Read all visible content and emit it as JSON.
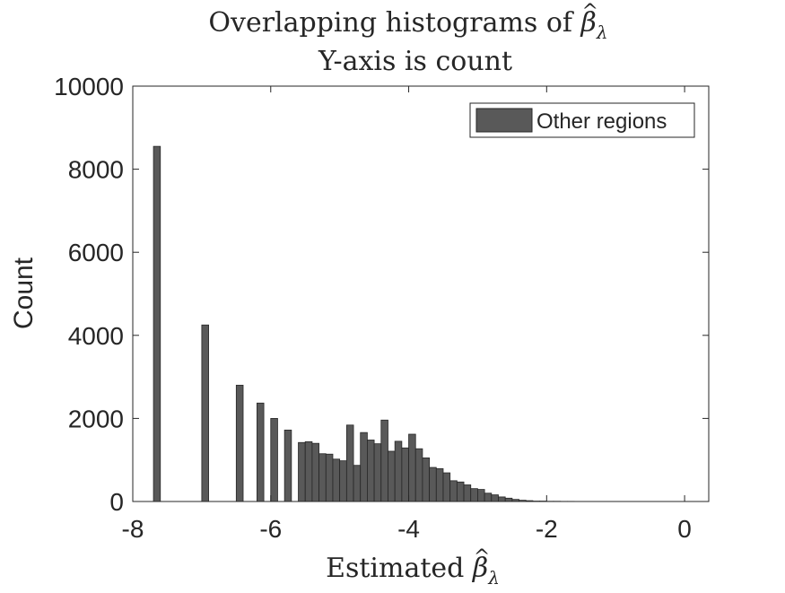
{
  "chart_data": {
    "type": "bar",
    "title": {
      "line1_text": "Overlapping histograms of",
      "line1_symbol": "β",
      "line1_hat": "^",
      "line1_subscript": "λ",
      "line2": "Y-axis is count"
    },
    "xlabel": {
      "text": "Estimated",
      "symbol": "β",
      "hat": "^",
      "subscript": "λ"
    },
    "ylabel": "Count",
    "xlim": [
      -8.0,
      0.35
    ],
    "ylim": [
      0,
      10000
    ],
    "xticks": [
      -8,
      -6,
      -4,
      -2,
      0
    ],
    "xtick_labels": [
      "-8",
      "-6",
      "-4",
      "-2",
      "0"
    ],
    "yticks": [
      0,
      2000,
      4000,
      6000,
      8000,
      10000
    ],
    "ytick_labels": [
      "0",
      "2000",
      "4000",
      "6000",
      "8000",
      "10000"
    ],
    "bin_width": 0.1,
    "bin_start": -7.7,
    "series": [
      {
        "name": "Other regions",
        "color": "#595959",
        "values": [
          8550,
          0,
          0,
          0,
          0,
          0,
          0,
          4250,
          0,
          0,
          0,
          0,
          2800,
          0,
          0,
          2370,
          0,
          2000,
          0,
          1720,
          0,
          1420,
          1440,
          1400,
          1150,
          1140,
          1020,
          980,
          1840,
          870,
          1660,
          1480,
          1390,
          1960,
          1210,
          1450,
          1290,
          1620,
          1270,
          1050,
          820,
          790,
          690,
          500,
          470,
          400,
          310,
          290,
          200,
          160,
          110,
          80,
          50,
          30,
          20,
          10,
          10,
          5,
          5,
          3,
          3,
          2,
          2,
          2,
          1,
          1,
          1,
          1,
          1,
          1,
          1,
          1,
          1,
          1,
          1,
          1,
          1,
          1
        ]
      }
    ],
    "legend_position": "top-right",
    "grid": false
  }
}
